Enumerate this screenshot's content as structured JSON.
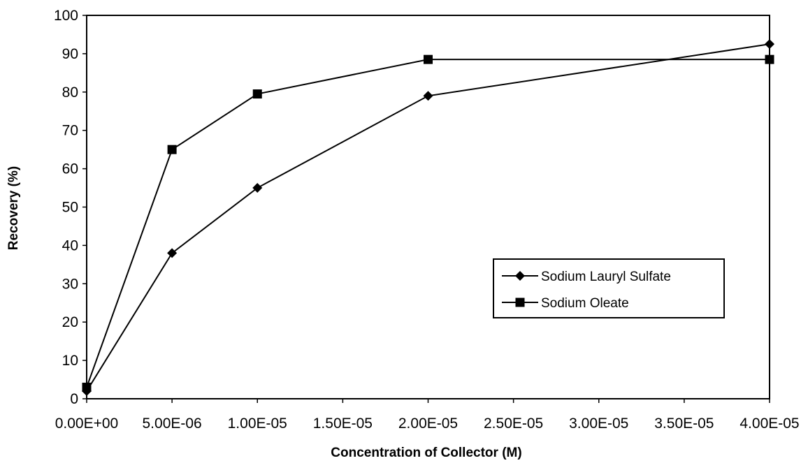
{
  "chart_data": {
    "type": "line",
    "title": "",
    "xlabel": "Concentration of Collector (M)",
    "ylabel": "Recovery (%)",
    "xlim": [
      0,
      4e-05
    ],
    "ylim": [
      0,
      100
    ],
    "x_ticks": [
      0,
      5e-06,
      1e-05,
      1.5e-05,
      2e-05,
      2.5e-05,
      3e-05,
      3.5e-05,
      4e-05
    ],
    "x_tick_labels": [
      "0.00E+00",
      "5.00E-06",
      "1.00E-05",
      "1.50E-05",
      "2.00E-05",
      "2.50E-05",
      "3.00E-05",
      "3.50E-05",
      "4.00E-05"
    ],
    "y_ticks": [
      0,
      10,
      20,
      30,
      40,
      50,
      60,
      70,
      80,
      90,
      100
    ],
    "y_tick_labels": [
      "0",
      "10",
      "20",
      "30",
      "40",
      "50",
      "60",
      "70",
      "80",
      "90",
      "100"
    ],
    "grid": false,
    "legend_position": "center-right",
    "series": [
      {
        "name": "Sodium Lauryl Sulfate",
        "marker": "diamond",
        "color": "#000000",
        "x": [
          0,
          5e-06,
          1e-05,
          2e-05,
          4e-05
        ],
        "y": [
          2,
          38,
          55,
          79,
          92.5
        ]
      },
      {
        "name": "Sodium Oleate",
        "marker": "square",
        "color": "#000000",
        "x": [
          0,
          5e-06,
          1e-05,
          2e-05,
          4e-05
        ],
        "y": [
          3,
          65,
          79.5,
          88.5,
          88.5
        ]
      }
    ]
  }
}
